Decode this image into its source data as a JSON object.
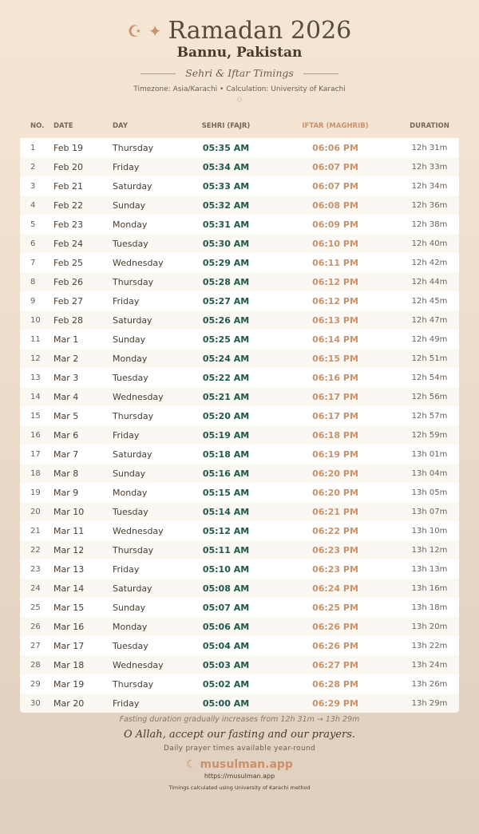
{
  "header": {
    "icons": [
      "crescent-star-icon",
      "sparkle-icon"
    ],
    "title": "Ramadan 2026",
    "city": "Bannu, Pakistan",
    "subtitle": "Sehri & Iftar Timings",
    "meta": "Timezone: Asia/Karachi • Calculation: University of Karachi"
  },
  "table": {
    "columns": [
      "NO.",
      "DATE",
      "DAY",
      "SEHRI (FAJR)",
      "IFTAR (MAGHRIB)",
      "DURATION"
    ],
    "rows": [
      [
        "1",
        "Feb 19",
        "Thursday",
        "05:35 AM",
        "06:06 PM",
        "12h 31m"
      ],
      [
        "2",
        "Feb 20",
        "Friday",
        "05:34 AM",
        "06:07 PM",
        "12h 33m"
      ],
      [
        "3",
        "Feb 21",
        "Saturday",
        "05:33 AM",
        "06:07 PM",
        "12h 34m"
      ],
      [
        "4",
        "Feb 22",
        "Sunday",
        "05:32 AM",
        "06:08 PM",
        "12h 36m"
      ],
      [
        "5",
        "Feb 23",
        "Monday",
        "05:31 AM",
        "06:09 PM",
        "12h 38m"
      ],
      [
        "6",
        "Feb 24",
        "Tuesday",
        "05:30 AM",
        "06:10 PM",
        "12h 40m"
      ],
      [
        "7",
        "Feb 25",
        "Wednesday",
        "05:29 AM",
        "06:11 PM",
        "12h 42m"
      ],
      [
        "8",
        "Feb 26",
        "Thursday",
        "05:28 AM",
        "06:12 PM",
        "12h 44m"
      ],
      [
        "9",
        "Feb 27",
        "Friday",
        "05:27 AM",
        "06:12 PM",
        "12h 45m"
      ],
      [
        "10",
        "Feb 28",
        "Saturday",
        "05:26 AM",
        "06:13 PM",
        "12h 47m"
      ],
      [
        "11",
        "Mar 1",
        "Sunday",
        "05:25 AM",
        "06:14 PM",
        "12h 49m"
      ],
      [
        "12",
        "Mar 2",
        "Monday",
        "05:24 AM",
        "06:15 PM",
        "12h 51m"
      ],
      [
        "13",
        "Mar 3",
        "Tuesday",
        "05:22 AM",
        "06:16 PM",
        "12h 54m"
      ],
      [
        "14",
        "Mar 4",
        "Wednesday",
        "05:21 AM",
        "06:17 PM",
        "12h 56m"
      ],
      [
        "15",
        "Mar 5",
        "Thursday",
        "05:20 AM",
        "06:17 PM",
        "12h 57m"
      ],
      [
        "16",
        "Mar 6",
        "Friday",
        "05:19 AM",
        "06:18 PM",
        "12h 59m"
      ],
      [
        "17",
        "Mar 7",
        "Saturday",
        "05:18 AM",
        "06:19 PM",
        "13h 01m"
      ],
      [
        "18",
        "Mar 8",
        "Sunday",
        "05:16 AM",
        "06:20 PM",
        "13h 04m"
      ],
      [
        "19",
        "Mar 9",
        "Monday",
        "05:15 AM",
        "06:20 PM",
        "13h 05m"
      ],
      [
        "20",
        "Mar 10",
        "Tuesday",
        "05:14 AM",
        "06:21 PM",
        "13h 07m"
      ],
      [
        "21",
        "Mar 11",
        "Wednesday",
        "05:12 AM",
        "06:22 PM",
        "13h 10m"
      ],
      [
        "22",
        "Mar 12",
        "Thursday",
        "05:11 AM",
        "06:23 PM",
        "13h 12m"
      ],
      [
        "23",
        "Mar 13",
        "Friday",
        "05:10 AM",
        "06:23 PM",
        "13h 13m"
      ],
      [
        "24",
        "Mar 14",
        "Saturday",
        "05:08 AM",
        "06:24 PM",
        "13h 16m"
      ],
      [
        "25",
        "Mar 15",
        "Sunday",
        "05:07 AM",
        "06:25 PM",
        "13h 18m"
      ],
      [
        "26",
        "Mar 16",
        "Monday",
        "05:06 AM",
        "06:26 PM",
        "13h 20m"
      ],
      [
        "27",
        "Mar 17",
        "Tuesday",
        "05:04 AM",
        "06:26 PM",
        "13h 22m"
      ],
      [
        "28",
        "Mar 18",
        "Wednesday",
        "05:03 AM",
        "06:27 PM",
        "13h 24m"
      ],
      [
        "29",
        "Mar 19",
        "Thursday",
        "05:02 AM",
        "06:28 PM",
        "13h 26m"
      ],
      [
        "30",
        "Mar 20",
        "Friday",
        "05:00 AM",
        "06:29 PM",
        "13h 29m"
      ]
    ]
  },
  "footer": {
    "note": "Fasting duration gradually increases from 12h 31m → 13h 29m",
    "dua": "O Allah, accept our fasting and our prayers.",
    "tagline": "Daily prayer times available year-round",
    "brand": "musulman.app",
    "url": "https://musulman.app",
    "method": "Timings calculated using University of Karachi method"
  },
  "colors": {
    "sehri": "#1d5a4c",
    "iftar": "#c9926a",
    "accent": "#c9926a"
  }
}
